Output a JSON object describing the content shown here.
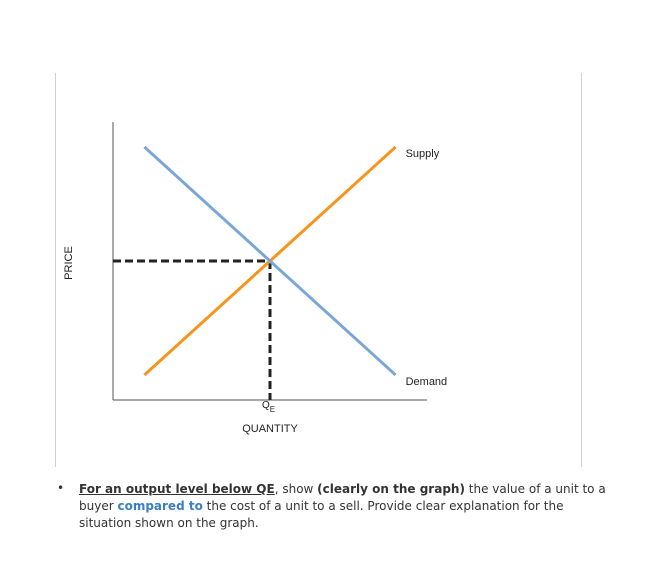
{
  "chart_data": {
    "type": "line",
    "title": "",
    "xlabel": "QUANTITY",
    "ylabel": "PRICE",
    "xlim": [
      0,
      100
    ],
    "ylim": [
      0,
      100
    ],
    "grid": false,
    "series": [
      {
        "name": "Supply",
        "color": "#f7941d",
        "x": [
          10,
          90
        ],
        "y": [
          9,
          91
        ]
      },
      {
        "name": "Demand",
        "color": "#7aa7d4",
        "x": [
          10,
          90
        ],
        "y": [
          91,
          9
        ]
      }
    ],
    "equilibrium": {
      "x": 50,
      "y": 50,
      "label_main": "Q",
      "label_sub": "E"
    },
    "guide_line_color": "#222222"
  },
  "question": {
    "bullet": "•",
    "part1": "For an output level below QE",
    "part2": ", show ",
    "part3": "(clearly on the graph)",
    "part4": " the value of a unit to a buyer ",
    "part5": "compared to",
    "part6": " the cost of a unit to a sell. Provide clear explanation for the situation shown on the graph."
  }
}
